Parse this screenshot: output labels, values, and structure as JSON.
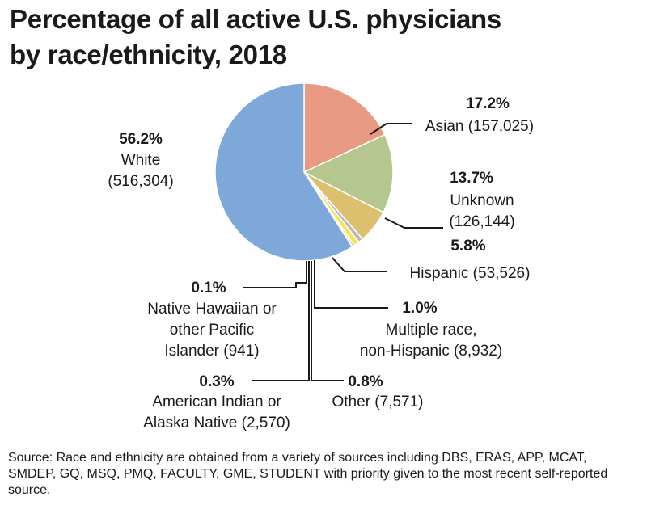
{
  "title_line1": "Percentage of all active U.S. physicians",
  "title_line2": "by race/ethnicity, 2018",
  "source_text": "Source: Race and ethnicity are obtained from a variety of sources including DBS, ERAS, APP, MCAT, SMDEP, GQ, MSQ, PMQ, FACULTY, GME, STUDENT with priority given to the most recent self-reported source.",
  "chart_data": {
    "type": "pie",
    "title": "Percentage of all active U.S. physicians by race/ethnicity, 2018",
    "slices": [
      {
        "key": "asian",
        "label": "Asian",
        "percent": 17.2,
        "percent_label": "17.2%",
        "count": 157025,
        "count_label": "(157,025)",
        "color": "#e99a82"
      },
      {
        "key": "unknown",
        "label": "Unknown",
        "percent": 13.7,
        "percent_label": "13.7%",
        "count": 126144,
        "count_label": "(126,144)",
        "color": "#b5c78f"
      },
      {
        "key": "hispanic",
        "label": "Hispanic",
        "percent": 5.8,
        "percent_label": "5.8%",
        "count": 53526,
        "count_label": "(53,526)",
        "color": "#ddc06e"
      },
      {
        "key": "other",
        "label": "Other",
        "percent": 0.8,
        "percent_label": "0.8%",
        "count": 7571,
        "count_label": "(7,571)",
        "color": "#b8b8b8"
      },
      {
        "key": "multiple",
        "label": "Multiple race, non-Hispanic",
        "percent": 1.0,
        "percent_label": "1.0%",
        "count": 8932,
        "count_label": "(8,932)",
        "color": "#f5e55a"
      },
      {
        "key": "aian",
        "label": "American Indian or Alaska Native",
        "percent": 0.3,
        "percent_label": "0.3%",
        "count": 2570,
        "count_label": "(2,570)",
        "color": "#a77bb5"
      },
      {
        "key": "nhpi",
        "label": "Native Hawaiian or other Pacific Islander",
        "percent": 0.1,
        "percent_label": "0.1%",
        "count": 941,
        "count_label": "(941)",
        "color": "#77a7a0"
      },
      {
        "key": "white",
        "label": "White",
        "percent": 56.2,
        "percent_label": "56.2%",
        "count": 516304,
        "count_label": "(516,304)",
        "color": "#7ea8d9"
      }
    ],
    "label_text": {
      "asian": {
        "pct": "17.2%",
        "l1": "Asian (157,025)"
      },
      "unknown": {
        "pct": "13.7%",
        "l1": "Unknown",
        "l2": "(126,144)"
      },
      "hispanic": {
        "pct": "5.8%",
        "l1": "Hispanic (53,526)"
      },
      "multiple": {
        "pct": "1.0%",
        "l1": "Multiple race,",
        "l2": "non-Hispanic (8,932)"
      },
      "other": {
        "pct": "0.8%",
        "l1": "Other (7,571)"
      },
      "aian": {
        "pct": "0.3%",
        "l1": "American Indian or",
        "l2": "Alaska Native (2,570)"
      },
      "nhpi": {
        "pct": "0.1%",
        "l1": "Native Hawaiian or",
        "l2": "other Pacific",
        "l3": "Islander (941)"
      },
      "white": {
        "pct": "56.2%",
        "l1": "White",
        "l2": "(516,304)"
      }
    }
  }
}
